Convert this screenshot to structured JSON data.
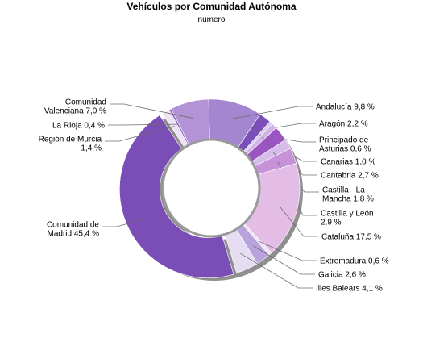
{
  "chart_data": {
    "type": "pie",
    "title": "Vehículos por Comunidad Autónoma",
    "subtitle": "numero",
    "unit": "%",
    "slices": [
      {
        "label": "Andalucía 9,8 %",
        "name": "Andalucía",
        "value": 9.8,
        "color": "#a386cf"
      },
      {
        "label": "Aragón 2,2 %",
        "name": "Aragón",
        "value": 2.2,
        "color": "#7a4fb8"
      },
      {
        "label": "Principado de Asturias 0,6 %",
        "name": "Principado de Asturias",
        "value": 0.6,
        "color": "#dccbee"
      },
      {
        "label": "Canarias 1,0 %",
        "name": "Canarias",
        "value": 1.0,
        "color": "#cfb3e6"
      },
      {
        "label": "Cantabria 2,7 %",
        "name": "Cantabria",
        "value": 2.7,
        "color": "#9a55c0"
      },
      {
        "label": "Castilla - La Mancha 1,8 %",
        "name": "Castilla - La Mancha",
        "value": 1.8,
        "color": "#d6bde9"
      },
      {
        "label": "Castilla y León 2,9 %",
        "name": "Castilla y León",
        "value": 2.9,
        "color": "#c692d8"
      },
      {
        "label": "Cataluña 17,5 %",
        "name": "Cataluña",
        "value": 17.5,
        "color": "#e3bde5"
      },
      {
        "label": "Extremadura 0,6 %",
        "name": "Extremadura",
        "value": 0.6,
        "color": "#f0e4f4"
      },
      {
        "label": "Galicia 2,6 %",
        "name": "Galicia",
        "value": 2.6,
        "color": "#b9a3dd"
      },
      {
        "label": "Illes Balears 4,1 %",
        "name": "Illes Balears",
        "value": 4.1,
        "color": "#e6ddf3"
      },
      {
        "label": "Comunidad de Madrid 45,4 %",
        "name": "Comunidad de Madrid",
        "value": 45.4,
        "color": "#7b4db6"
      },
      {
        "label": "Región de Murcia 1,4 %",
        "name": "Región de Murcia",
        "value": 1.4,
        "color": "#eee4f6"
      },
      {
        "label": "La Rioja 0,4 %",
        "name": "La Rioja",
        "value": 0.4,
        "color": "#8f6cc4"
      },
      {
        "label": "Comunidad Valenciana 7,0 %",
        "name": "Comunidad Valenciana",
        "value": 7.0,
        "color": "#b393d6"
      }
    ]
  }
}
